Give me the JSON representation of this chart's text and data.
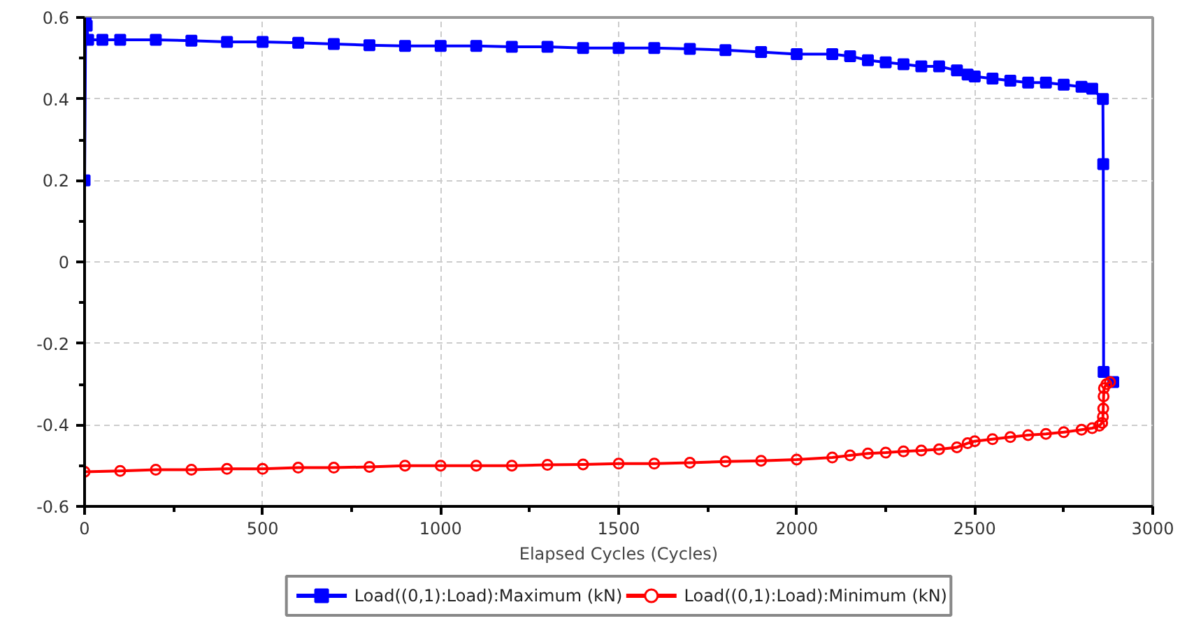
{
  "chart_data": {
    "type": "line",
    "xlabel": "Elapsed Cycles (Cycles)",
    "xlim": [
      0,
      3000
    ],
    "ylim": [
      -0.6,
      0.6
    ],
    "xticks": [
      0,
      {
        "value": 250,
        "label": null
      },
      500,
      {
        "value": 750,
        "label": null
      },
      1000,
      {
        "value": 1250,
        "label": null
      },
      1500,
      {
        "value": 1750,
        "label": null
      },
      2000,
      {
        "value": 2250,
        "label": null
      },
      2500,
      {
        "value": 2750,
        "label": null
      },
      3000
    ],
    "yticks": [
      -0.6,
      {
        "value": -0.5,
        "label": null
      },
      -0.4,
      {
        "value": -0.3,
        "label": null
      },
      -0.2,
      {
        "value": -0.1,
        "label": null
      },
      0,
      {
        "value": 0.1,
        "label": null
      },
      0.2,
      {
        "value": 0.3,
        "label": null
      },
      0.4,
      {
        "value": 0.5,
        "label": null
      },
      0.6
    ],
    "grid": true,
    "legend": "bottom",
    "series": [
      {
        "name": "Load((0,1):Load):Maximum (kN)",
        "color": "#0000ff",
        "marker": "square",
        "x": [
          0,
          3,
          6,
          10,
          50,
          100,
          200,
          300,
          400,
          500,
          600,
          700,
          800,
          900,
          1000,
          1100,
          1200,
          1300,
          1400,
          1500,
          1600,
          1700,
          1800,
          1900,
          2000,
          2100,
          2150,
          2200,
          2250,
          2300,
          2350,
          2400,
          2450,
          2480,
          2500,
          2550,
          2600,
          2650,
          2700,
          2750,
          2800,
          2830,
          2860,
          2861,
          2862,
          2889
        ],
        "values": [
          0.2,
          0.6,
          0.58,
          0.545,
          0.545,
          0.545,
          0.545,
          0.543,
          0.54,
          0.54,
          0.538,
          0.535,
          0.532,
          0.53,
          0.53,
          0.53,
          0.528,
          0.528,
          0.525,
          0.525,
          0.525,
          0.523,
          0.52,
          0.515,
          0.51,
          0.51,
          0.505,
          0.495,
          0.49,
          0.485,
          0.48,
          0.48,
          0.47,
          0.46,
          0.455,
          0.45,
          0.445,
          0.44,
          0.44,
          0.435,
          0.43,
          0.425,
          0.4,
          0.24,
          -0.27,
          -0.295
        ]
      },
      {
        "name": "Load((0,1):Load):Minimum (kN)",
        "color": "#ff0000",
        "marker": "circle",
        "x": [
          0,
          100,
          200,
          300,
          400,
          500,
          600,
          700,
          800,
          900,
          1000,
          1100,
          1200,
          1300,
          1400,
          1500,
          1600,
          1700,
          1800,
          1900,
          2000,
          2100,
          2150,
          2200,
          2250,
          2300,
          2350,
          2400,
          2450,
          2480,
          2500,
          2550,
          2600,
          2650,
          2700,
          2750,
          2800,
          2830,
          2850,
          2858,
          2860,
          2861,
          2862,
          2863,
          2870,
          2880
        ],
        "values": [
          -0.515,
          -0.513,
          -0.51,
          -0.51,
          -0.508,
          -0.508,
          -0.505,
          -0.505,
          -0.503,
          -0.5,
          -0.5,
          -0.5,
          -0.5,
          -0.498,
          -0.497,
          -0.495,
          -0.495,
          -0.493,
          -0.49,
          -0.488,
          -0.485,
          -0.48,
          -0.475,
          -0.47,
          -0.468,
          -0.465,
          -0.463,
          -0.46,
          -0.455,
          -0.445,
          -0.44,
          -0.435,
          -0.43,
          -0.425,
          -0.422,
          -0.418,
          -0.412,
          -0.408,
          -0.402,
          -0.395,
          -0.38,
          -0.36,
          -0.33,
          -0.31,
          -0.3,
          -0.295
        ]
      }
    ]
  }
}
